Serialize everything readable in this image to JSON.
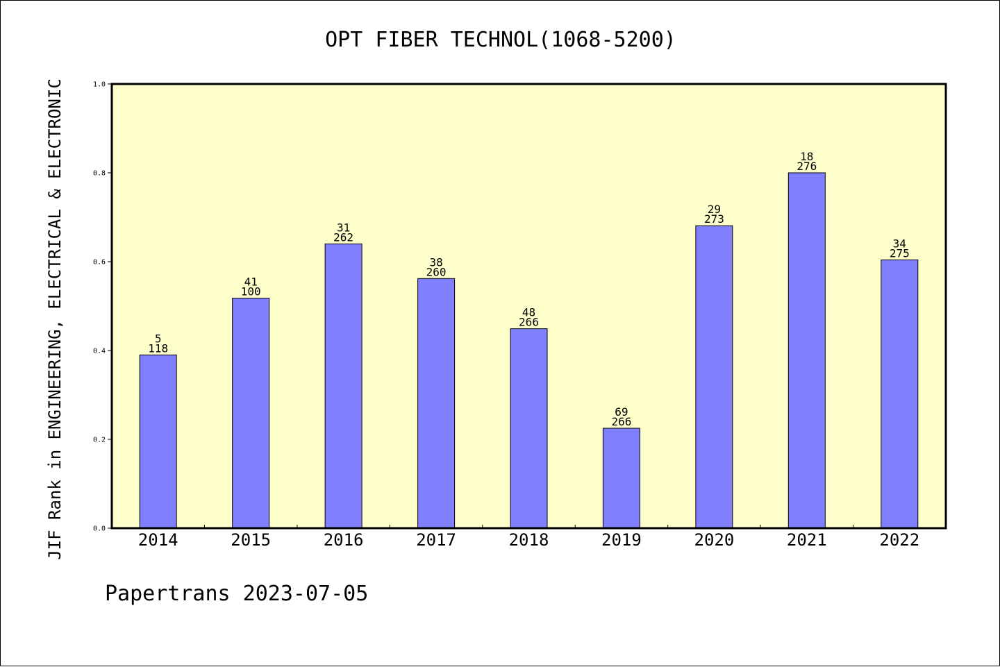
{
  "chart_data": {
    "type": "bar",
    "title": "OPT FIBER TECHNOL(1068-5200)",
    "ylabel": "JIF Rank in ENGINEERING, ELECTRICAL & ELECTRONIC",
    "xlabel": "",
    "ylim": [
      0.0,
      1.0
    ],
    "yticks": [
      "0.0",
      "0.2",
      "0.4",
      "0.6",
      "0.8",
      "1.0"
    ],
    "categories": [
      "2014",
      "2015",
      "2016",
      "2017",
      "2018",
      "2019",
      "2020",
      "2021",
      "2022"
    ],
    "values": [
      0.39,
      0.518,
      0.64,
      0.562,
      0.449,
      0.225,
      0.681,
      0.8,
      0.604
    ],
    "rank_labels": [
      "5",
      "41",
      "31",
      "38",
      "48",
      "69",
      "29",
      "18",
      "34"
    ],
    "total_labels": [
      "118",
      "100",
      "262",
      "260",
      "266",
      "266",
      "273",
      "276",
      "275"
    ],
    "grid": false,
    "legend": "none",
    "colors": {
      "bar": "#8080ff",
      "plot_background": "#ffffcc",
      "axis": "#000000"
    }
  },
  "footer": {
    "credit": "Papertrans 2023-07-05"
  }
}
